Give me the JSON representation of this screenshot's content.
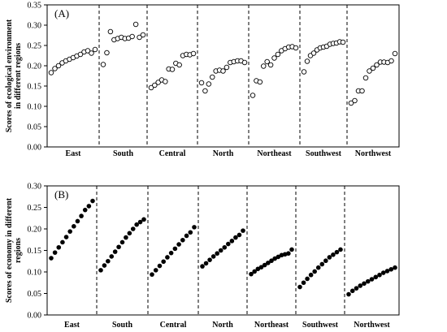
{
  "chart_data": [
    {
      "type": "scatter",
      "panel_label": "(A)",
      "ylabel_lines": [
        "Scores of ecological environment",
        "in different regions"
      ],
      "ylim": [
        0,
        0.35
      ],
      "yticks": [
        "0.00",
        "0.05",
        "0.10",
        "0.15",
        "0.20",
        "0.25",
        "0.30",
        "0.35"
      ],
      "marker": "open-circle",
      "grid": false,
      "regions": [
        {
          "name": "East",
          "values": [
            0.183,
            0.193,
            0.2,
            0.207,
            0.212,
            0.216,
            0.22,
            0.224,
            0.228,
            0.234,
            0.237,
            0.231,
            0.24
          ]
        },
        {
          "name": "South",
          "values": [
            0.203,
            0.232,
            0.284,
            0.264,
            0.267,
            0.27,
            0.267,
            0.268,
            0.272,
            0.302,
            0.27,
            0.276
          ]
        },
        {
          "name": "Central",
          "values": [
            0.146,
            0.152,
            0.159,
            0.165,
            0.161,
            0.192,
            0.191,
            0.206,
            0.202,
            0.225,
            0.228,
            0.227,
            0.23
          ]
        },
        {
          "name": "North",
          "values": [
            0.158,
            0.138,
            0.155,
            0.172,
            0.187,
            0.189,
            0.187,
            0.196,
            0.208,
            0.21,
            0.212,
            0.212,
            0.208
          ]
        },
        {
          "name": "Northeast",
          "values": [
            0.127,
            0.163,
            0.16,
            0.199,
            0.21,
            0.202,
            0.219,
            0.228,
            0.237,
            0.242,
            0.246,
            0.247,
            0.244
          ]
        },
        {
          "name": "Southwest",
          "values": [
            0.185,
            0.211,
            0.225,
            0.231,
            0.239,
            0.244,
            0.246,
            0.248,
            0.253,
            0.255,
            0.256,
            0.259,
            0.258
          ]
        },
        {
          "name": "Northwest",
          "values": [
            0.108,
            0.114,
            0.138,
            0.138,
            0.17,
            0.187,
            0.194,
            0.202,
            0.209,
            0.209,
            0.208,
            0.212,
            0.23
          ]
        }
      ]
    },
    {
      "type": "scatter",
      "panel_label": "(B)",
      "ylabel_lines": [
        "Scores of economy in different",
        "regions"
      ],
      "ylim": [
        0,
        0.3
      ],
      "yticks": [
        "0.00",
        "0.05",
        "0.10",
        "0.15",
        "0.20",
        "0.25",
        "0.30"
      ],
      "marker": "filled-circle",
      "grid": false,
      "regions": [
        {
          "name": "East",
          "values": [
            0.132,
            0.145,
            0.157,
            0.169,
            0.181,
            0.194,
            0.206,
            0.218,
            0.23,
            0.244,
            0.253,
            0.265
          ]
        },
        {
          "name": "South",
          "values": [
            0.104,
            0.115,
            0.125,
            0.136,
            0.147,
            0.158,
            0.169,
            0.18,
            0.19,
            0.2,
            0.21,
            0.216,
            0.222
          ]
        },
        {
          "name": "Central",
          "values": [
            0.094,
            0.104,
            0.114,
            0.124,
            0.134,
            0.144,
            0.154,
            0.164,
            0.174,
            0.184,
            0.192,
            0.204
          ]
        },
        {
          "name": "North",
          "values": [
            0.113,
            0.12,
            0.128,
            0.136,
            0.143,
            0.15,
            0.157,
            0.165,
            0.172,
            0.18,
            0.186,
            0.196
          ]
        },
        {
          "name": "Northeast",
          "values": [
            0.095,
            0.101,
            0.107,
            0.111,
            0.116,
            0.121,
            0.126,
            0.131,
            0.135,
            0.139,
            0.141,
            0.143,
            0.152
          ]
        },
        {
          "name": "Southwest",
          "values": [
            0.065,
            0.075,
            0.084,
            0.093,
            0.101,
            0.11,
            0.118,
            0.126,
            0.134,
            0.14,
            0.146,
            0.152
          ]
        },
        {
          "name": "Northwest",
          "values": [
            0.048,
            0.056,
            0.062,
            0.068,
            0.073,
            0.078,
            0.083,
            0.088,
            0.093,
            0.098,
            0.102,
            0.106,
            0.11
          ]
        }
      ]
    }
  ]
}
